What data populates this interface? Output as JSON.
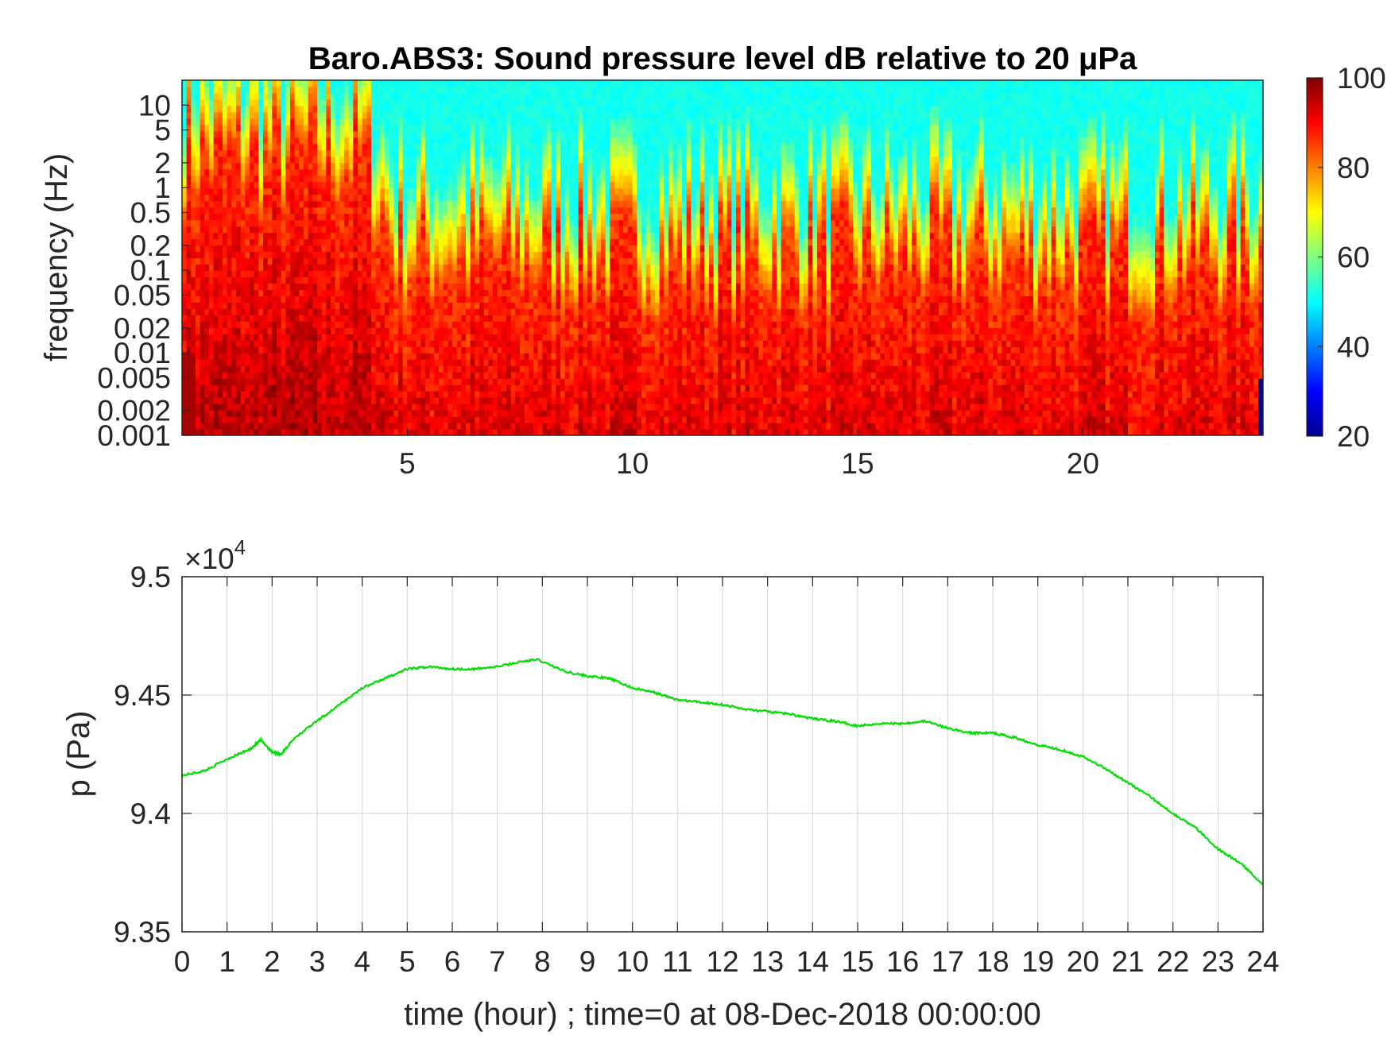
{
  "chart_data": [
    {
      "type": "heatmap",
      "title": "Baro.ABS3: Sound pressure level dB relative to 20 μPa",
      "ylabel": "frequency (Hz)",
      "xlabel": "",
      "x_unit": "hour",
      "xlim": [
        0,
        24
      ],
      "x_ticks": [
        5,
        10,
        15,
        20
      ],
      "x_tick_labels": [
        "5",
        "10",
        "15",
        "20"
      ],
      "y_scale": "log",
      "ylim": [
        0.001,
        20
      ],
      "y_ticks": [
        0.001,
        0.002,
        0.005,
        0.01,
        0.02,
        0.05,
        0.1,
        0.2,
        0.5,
        1,
        2,
        5,
        10
      ],
      "y_tick_labels": [
        "0.001",
        "0.002",
        "0.005",
        "0.01",
        "0.02",
        "0.05",
        "0.1",
        "0.2",
        "0.5",
        "1",
        "2",
        "5",
        "10"
      ],
      "colormap": "jet",
      "colorbar": {
        "range": [
          20,
          100
        ],
        "ticks": [
          20,
          40,
          60,
          80,
          100
        ],
        "tick_labels": [
          "20",
          "40",
          "60",
          "80",
          "100"
        ]
      },
      "level_profile_db": [
        {
          "hours": [
            0,
            4
          ],
          "high_freq_boundary_hz": 5,
          "description_level_high": 90
        },
        {
          "hours": [
            4,
            24
          ],
          "high_freq_boundary_hz": 0.3,
          "description_level_high": 85
        }
      ],
      "background_level_db_high_freq": 50,
      "low_edge_level_db": 20
    },
    {
      "type": "line",
      "title": "",
      "xlabel": "time (hour) ; time=0 at 08-Dec-2018 00:00:00",
      "ylabel": "p (Pa)",
      "xlim": [
        0,
        24
      ],
      "ylim": [
        93500,
        95000
      ],
      "x_ticks": [
        0,
        1,
        2,
        3,
        4,
        5,
        6,
        7,
        8,
        9,
        10,
        11,
        12,
        13,
        14,
        15,
        16,
        17,
        18,
        19,
        20,
        21,
        22,
        23,
        24
      ],
      "x_tick_labels": [
        "0",
        "1",
        "2",
        "3",
        "4",
        "5",
        "6",
        "7",
        "8",
        "9",
        "10",
        "11",
        "12",
        "13",
        "14",
        "15",
        "16",
        "17",
        "18",
        "19",
        "20",
        "21",
        "22",
        "23",
        "24"
      ],
      "y_ticks": [
        93500,
        94000,
        94500,
        95000
      ],
      "y_tick_labels": [
        "9.35",
        "9.4",
        "9.45",
        "9.5"
      ],
      "y_exponent_label": "×10",
      "y_exponent_power": "4",
      "grid": true,
      "series_color": "#00dd00",
      "series": [
        {
          "x": [
            0,
            0.5,
            1,
            1.5,
            1.75,
            2,
            2.2,
            2.5,
            3,
            3.5,
            4,
            4.5,
            5,
            5.5,
            6,
            6.5,
            7,
            7.5,
            7.9,
            8.5,
            9,
            9.5,
            10,
            10.5,
            11,
            11.5,
            12,
            12.5,
            13,
            13.5,
            14,
            14.5,
            15,
            15.5,
            16,
            16.5,
            17,
            17.5,
            18,
            18.5,
            19,
            19.5,
            20,
            20.5,
            21,
            21.5,
            22,
            22.5,
            23,
            23.5,
            24
          ],
          "values": [
            94160,
            94180,
            94230,
            94270,
            94310,
            94260,
            94250,
            94320,
            94390,
            94460,
            94530,
            94570,
            94610,
            94620,
            94610,
            94610,
            94620,
            94640,
            94650,
            94600,
            94580,
            94570,
            94530,
            94510,
            94480,
            94470,
            94460,
            94440,
            94430,
            94420,
            94400,
            94390,
            94370,
            94380,
            94380,
            94390,
            94360,
            94340,
            94340,
            94320,
            94290,
            94270,
            94240,
            94190,
            94130,
            94070,
            94000,
            93940,
            93850,
            93790,
            93700
          ]
        }
      ]
    }
  ]
}
